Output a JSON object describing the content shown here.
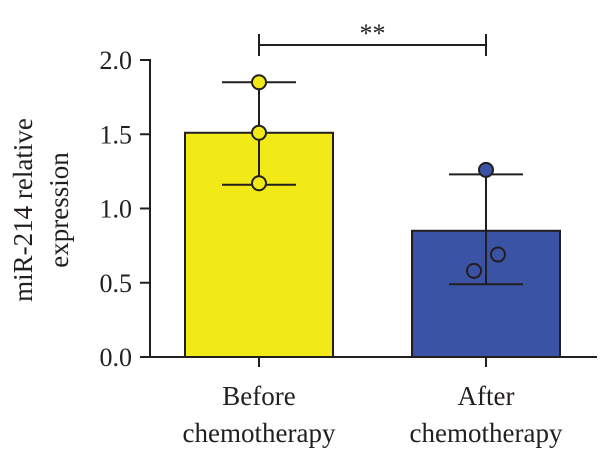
{
  "chart_data": {
    "type": "bar",
    "title": "",
    "ylabel_lines": [
      "miR-214 relative",
      "expression"
    ],
    "xlabel": "",
    "ylim": [
      0,
      2.0
    ],
    "yticks": [
      "0.0",
      "0.5",
      "1.0",
      "1.5",
      "2.0"
    ],
    "categories": [
      {
        "lines": [
          "Before",
          "chemotherapy"
        ],
        "value": 1.51,
        "error_low": 1.16,
        "error_high": 1.85,
        "color": "#f2ea17",
        "point_fill": "#f2ea17",
        "points": [
          1.85,
          1.51,
          1.17
        ],
        "points_filled": [
          true,
          false,
          false
        ]
      },
      {
        "lines": [
          "After",
          "chemotherapy"
        ],
        "value": 0.85,
        "error_low": 0.49,
        "error_high": 1.23,
        "color": "#3a53a4",
        "point_fill": "#3a53a4",
        "points": [
          1.26,
          0.58,
          0.69
        ],
        "points_filled": [
          true,
          false,
          false
        ]
      }
    ],
    "significance": {
      "label": "**",
      "between": [
        0,
        1
      ]
    },
    "grid": false,
    "legend": "none"
  }
}
